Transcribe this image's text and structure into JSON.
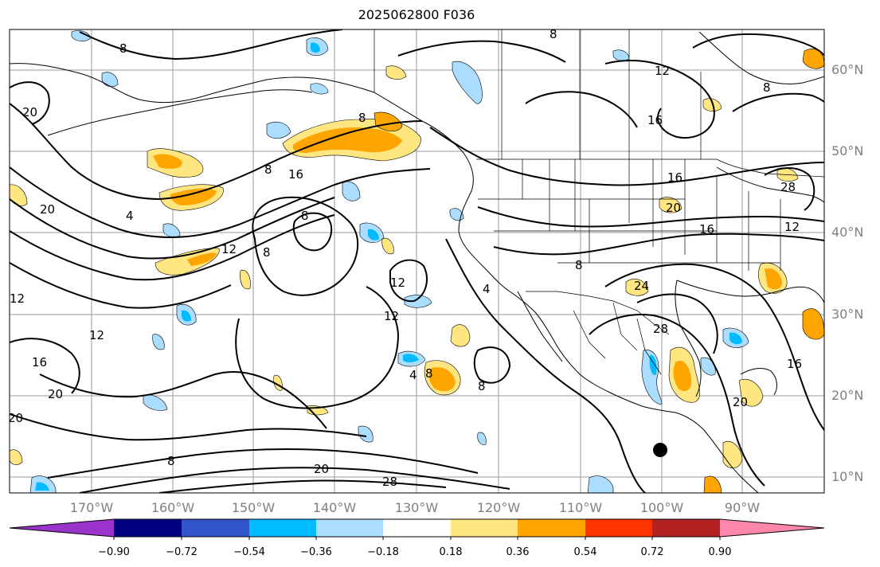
{
  "title": "2025062800 F036",
  "colors": {
    "contour": "#000000",
    "grid": "#9a9a9a",
    "coast": "#000000",
    "bins": [
      "#9933cc",
      "#000080",
      "#3355cc",
      "#00bbff",
      "#aaddff",
      "#ffffff",
      "#ffe680",
      "#ffa500",
      "#ff3300",
      "#b22222",
      "#ff88aa"
    ]
  },
  "lon_labels": [
    "170°W",
    "160°W",
    "150°W",
    "140°W",
    "130°W",
    "120°W",
    "110°W",
    "100°W",
    "90°W"
  ],
  "lat_labels": [
    "60°N",
    "50°N",
    "40°N",
    "30°N",
    "20°N",
    "10°N"
  ],
  "colorbar": {
    "ticks": [
      "−0.90",
      "−0.72",
      "−0.54",
      "−0.36",
      "−0.18",
      "0.18",
      "0.36",
      "0.54",
      "0.72",
      "0.90"
    ]
  },
  "contour_labels": [
    "8",
    "8",
    "8",
    "8",
    "8",
    "8",
    "8",
    "8",
    "8",
    "8",
    "8",
    "12",
    "12",
    "12",
    "12",
    "12",
    "12",
    "12",
    "16",
    "16",
    "16",
    "16",
    "16",
    "16",
    "20",
    "20",
    "20",
    "20",
    "20",
    "20",
    "20",
    "24",
    "28",
    "28",
    "28",
    "4",
    "4",
    "4"
  ],
  "marker": {
    "label": "station-dot"
  }
}
